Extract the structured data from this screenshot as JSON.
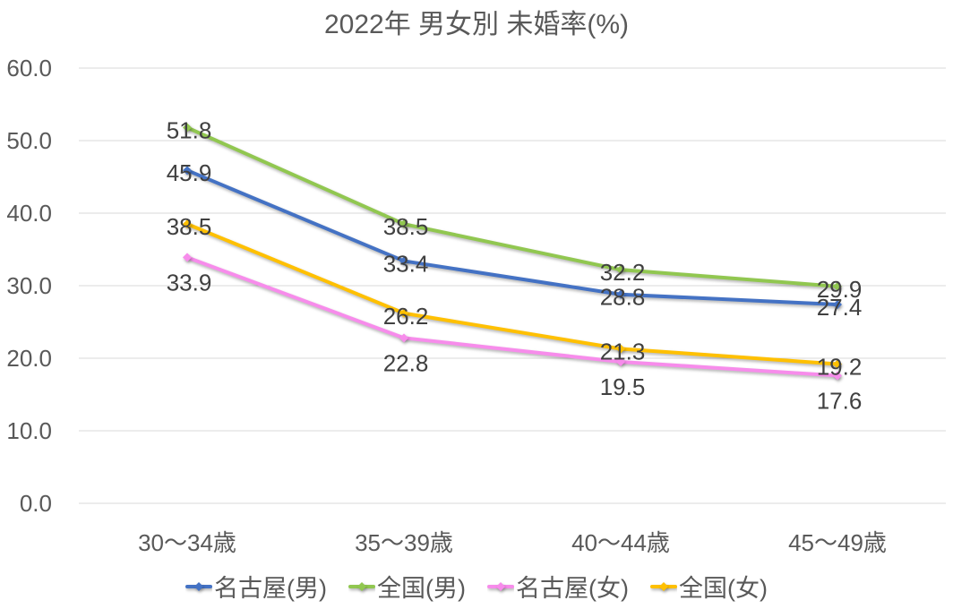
{
  "chart_data": {
    "type": "line",
    "title": "2022年 男女別 未婚率(%)",
    "categories": [
      "30〜34歳",
      "35〜39歳",
      "40〜44歳",
      "45〜49歳"
    ],
    "series": [
      {
        "name": "名古屋(男)",
        "color": "#4472C4",
        "values": [
          45.9,
          33.4,
          28.8,
          27.4
        ],
        "label_position": "center"
      },
      {
        "name": "全国(男)",
        "color": "#91C750",
        "values": [
          51.8,
          38.5,
          32.2,
          29.9
        ],
        "label_position": "center"
      },
      {
        "name": "名古屋(女)",
        "color": "#F78CEB",
        "values": [
          33.9,
          22.8,
          19.5,
          17.6
        ],
        "label_position": "below"
      },
      {
        "name": "全国(女)",
        "color": "#FFC000",
        "values": [
          38.5,
          26.2,
          21.3,
          19.2
        ],
        "label_position": "center"
      }
    ],
    "ylim": [
      0,
      60
    ],
    "ytick_interval": 10,
    "ytick_labels": [
      "0.0",
      "10.0",
      "20.0",
      "30.0",
      "40.0",
      "50.0",
      "60.0"
    ],
    "grid": true,
    "data_labels": true,
    "legend_position": "bottom",
    "marker_shape": "diamond"
  },
  "colors": {
    "title_text": "#595959",
    "axis_text": "#595959",
    "data_label_text": "#404040",
    "gridline": "#D9D9D9",
    "background": "#FFFFFF"
  }
}
